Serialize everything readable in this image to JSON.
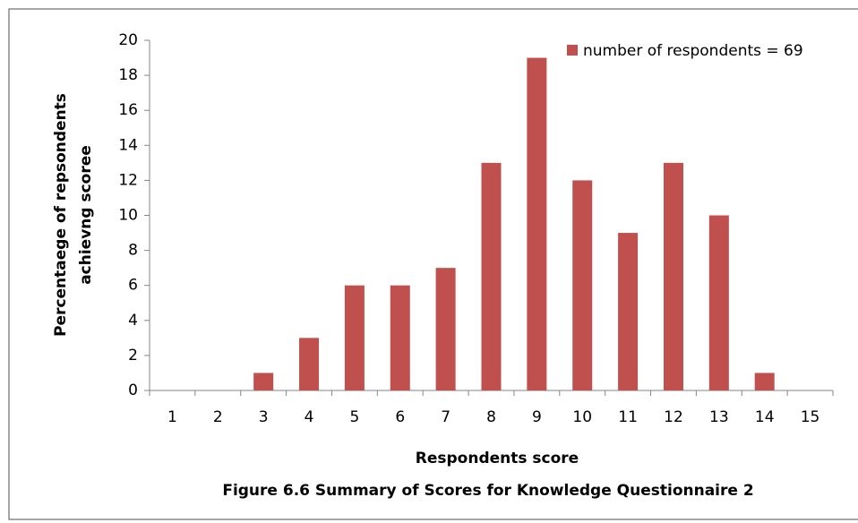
{
  "chart_data": {
    "type": "bar",
    "y_label": [
      "Percentaege of repsondents",
      "achievng scoree"
    ],
    "x_label": "Respondents score",
    "caption": "Figure 6.6 Summary of Scores for Knowledge Questionnaire  2",
    "categories": [
      "1",
      "2",
      "3",
      "4",
      "5",
      "6",
      "7",
      "8",
      "9",
      "10",
      "11",
      "12",
      "13",
      "14",
      "15"
    ],
    "series": [
      {
        "name": "number of respondents = 69",
        "color": "#c0504d",
        "values": [
          0,
          0,
          1,
          3,
          6,
          6,
          7,
          13,
          19,
          12,
          9,
          13,
          10,
          1,
          0
        ]
      }
    ],
    "ylim": [
      0,
      20
    ],
    "yticks": [
      0,
      2,
      4,
      6,
      8,
      10,
      12,
      14,
      16,
      18,
      20
    ],
    "grid": false
  }
}
